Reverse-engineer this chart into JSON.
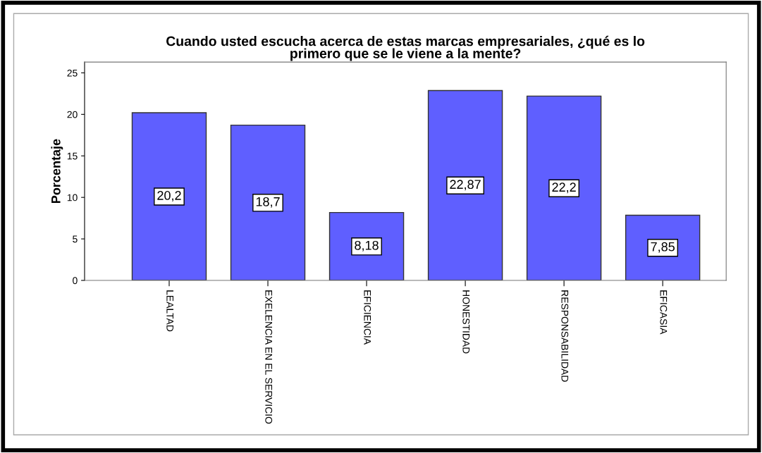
{
  "chart_data": {
    "type": "bar",
    "title": "Cuando usted escucha acerca de estas marcas empresariales, ¿qué es lo\nprimero que se le viene a la mente?",
    "ylabel": "Porcentaje",
    "categories": [
      "LEALTAD",
      "EXELENCIA EN EL SERVICIO",
      "EFICIENCIA",
      "HONESTIDAD",
      "RESPONSABILIDAD",
      "EFICASIA"
    ],
    "values": [
      20.2,
      18.7,
      8.18,
      22.87,
      22.2,
      7.85
    ],
    "value_labels": [
      "20,2",
      "18,7",
      "8,18",
      "22,87",
      "22,2",
      "7,85"
    ],
    "color": "#5f5fff",
    "ylim": [
      0,
      26.3
    ],
    "yticks": [
      0,
      5,
      10,
      15,
      20,
      25
    ],
    "grid": false,
    "legend": false
  }
}
